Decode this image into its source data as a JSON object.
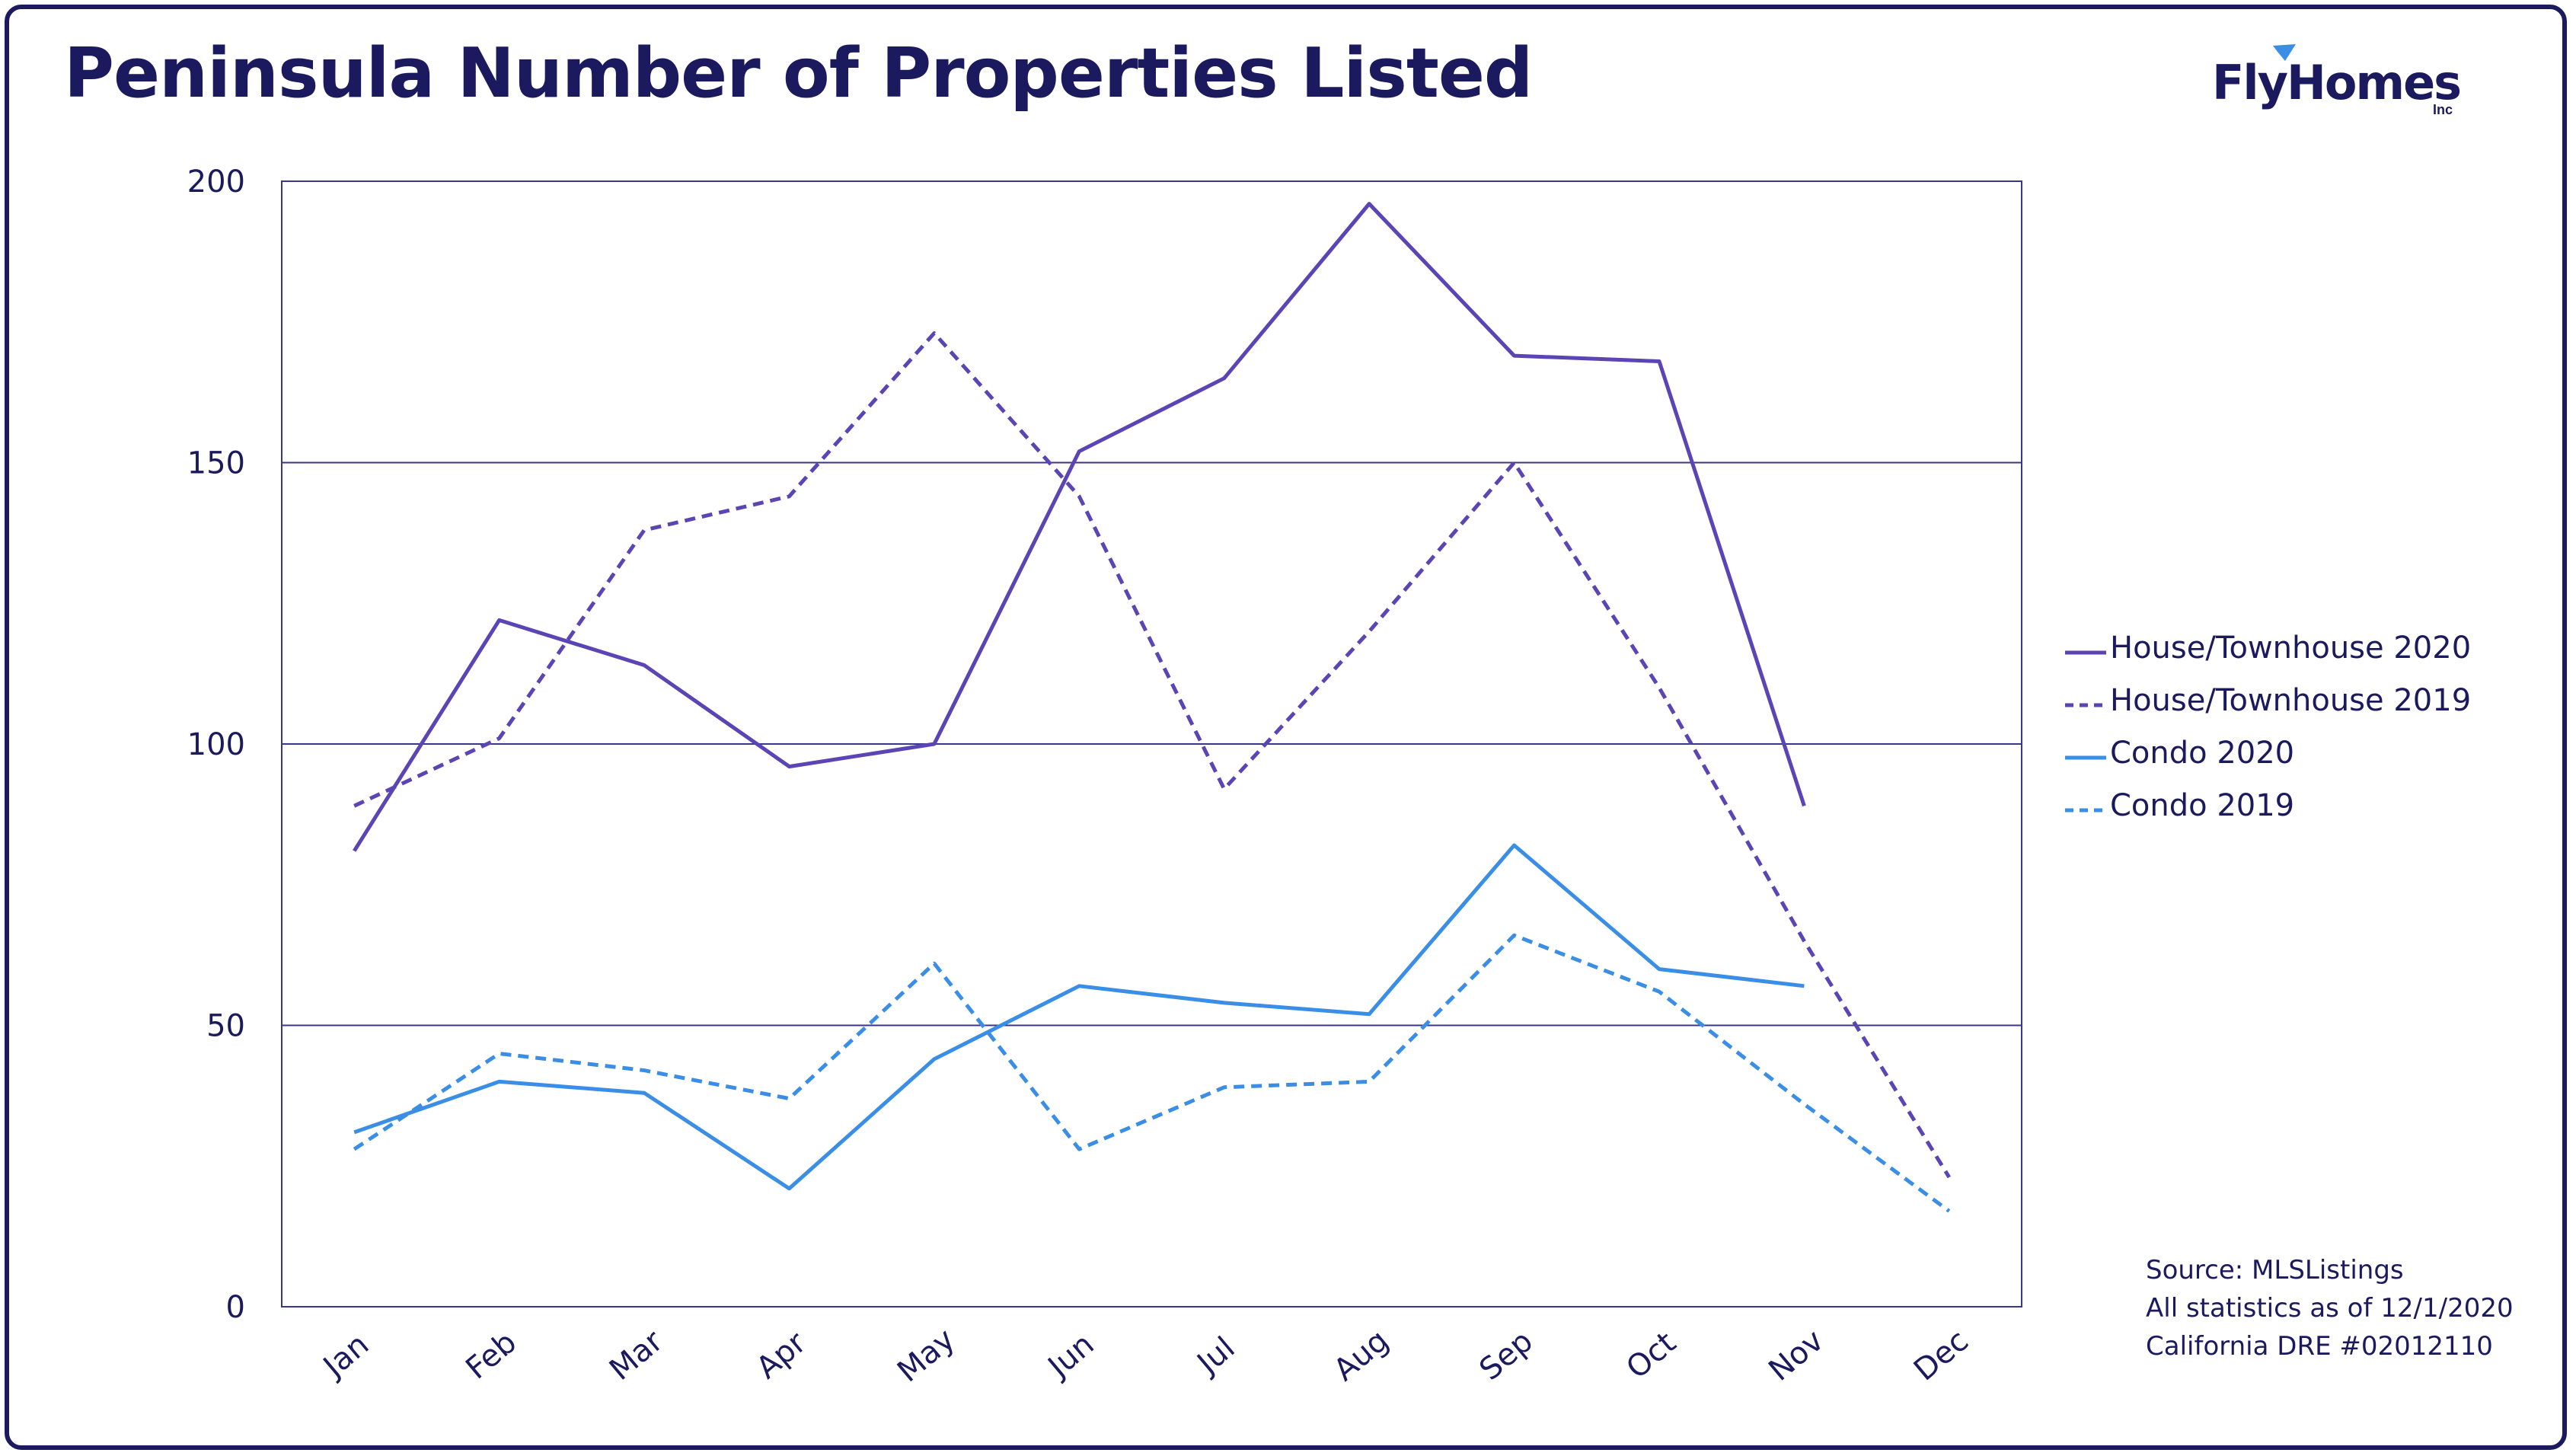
{
  "header": {
    "title": "Peninsula Number of Properties Listed",
    "logo_text": "FlyHomes",
    "logo_sub": "Inc"
  },
  "colors": {
    "border": "#1c1a5e",
    "text": "#1c1a5e",
    "axis": "#3a3689",
    "house": "#5b45b5",
    "condo": "#3a8ee6",
    "logo_accent": "#3a8ee6"
  },
  "chart_data": {
    "type": "line",
    "title": "Peninsula Number of Properties Listed",
    "xlabel": "",
    "ylabel": "",
    "ylim": [
      0,
      200
    ],
    "yticks": [
      "0",
      "50",
      "100",
      "150",
      "200"
    ],
    "grid": true,
    "legend_position": "right",
    "categories": [
      "Jan",
      "Feb",
      "Mar",
      "Apr",
      "May",
      "Jun",
      "Jul",
      "Aug",
      "Sep",
      "Oct",
      "Nov",
      "Dec"
    ],
    "series": [
      {
        "name": "House/Townhouse 2020",
        "style": "solid",
        "color": "#5b45b5",
        "values": [
          81,
          122,
          114,
          96,
          100,
          152,
          165,
          196,
          169,
          168,
          89,
          null
        ]
      },
      {
        "name": "House/Townhouse 2019",
        "style": "dashed",
        "color": "#5b45b5",
        "values": [
          89,
          101,
          138,
          144,
          173,
          144,
          92,
          120,
          150,
          110,
          65,
          23
        ]
      },
      {
        "name": "Condo 2020",
        "style": "solid",
        "color": "#3a8ee6",
        "values": [
          31,
          40,
          38,
          21,
          44,
          57,
          54,
          52,
          82,
          60,
          57,
          null
        ]
      },
      {
        "name": "Condo 2019",
        "style": "dashed",
        "color": "#3a8ee6",
        "values": [
          28,
          45,
          42,
          37,
          61,
          28,
          39,
          40,
          66,
          56,
          36,
          17
        ]
      }
    ]
  },
  "source": {
    "line1": "Source: MLSListings",
    "line2": "All statistics as of 12/1/2020",
    "line3": "California DRE #02012110"
  }
}
